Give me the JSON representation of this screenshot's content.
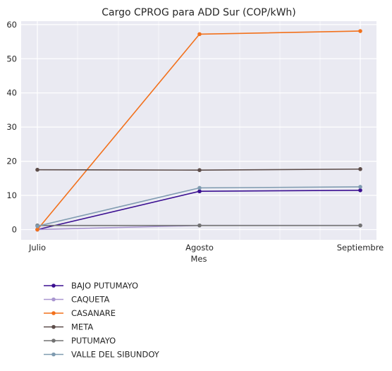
{
  "chart_data": {
    "type": "line",
    "title": "Cargo CPROG para ADD Sur (COP/kWh)",
    "xlabel": "Mes",
    "ylabel": "",
    "categories": [
      "Julio",
      "Agosto",
      "Septiembre"
    ],
    "ylim": [
      -3,
      61
    ],
    "yticks": [
      "0",
      "10",
      "20",
      "30",
      "40",
      "50",
      "60"
    ],
    "grid": true,
    "legend_position": "bottom-left-outside",
    "series": [
      {
        "name": "BAJO PUTUMAYO",
        "color": "#3b0f91",
        "values": [
          0.0,
          11.2,
          11.5
        ]
      },
      {
        "name": "CAQUETA",
        "color": "#a996d0",
        "values": [
          0.0,
          1.2,
          1.2
        ]
      },
      {
        "name": "CASANARE",
        "color": "#f2711c",
        "values": [
          0.0,
          57.2,
          58.1
        ]
      },
      {
        "name": "META",
        "color": "#5d4d4a",
        "values": [
          17.5,
          17.4,
          17.7
        ]
      },
      {
        "name": "PUTUMAYO",
        "color": "#727272",
        "values": [
          1.2,
          1.2,
          1.2
        ]
      },
      {
        "name": "VALLE DEL SIBUNDOY",
        "color": "#7f9bb0",
        "values": [
          1.0,
          12.2,
          12.5
        ]
      }
    ]
  }
}
